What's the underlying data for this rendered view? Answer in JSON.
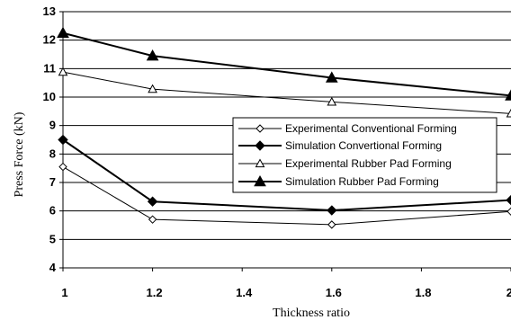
{
  "chart_data": {
    "type": "line",
    "xlabel": "Thickness ratio",
    "ylabel": "Press Force (kN)",
    "xlim": [
      1,
      2
    ],
    "ylim": [
      4,
      13
    ],
    "x_ticks": [
      "1",
      "1.2",
      "1.4",
      "1.6",
      "1.8",
      "2"
    ],
    "y_ticks": [
      "4",
      "5",
      "6",
      "7",
      "8",
      "9",
      "10",
      "11",
      "12",
      "13"
    ],
    "grid": "horizontal",
    "legend_position": "center-right",
    "x": [
      1,
      1.2,
      1.6,
      2
    ],
    "series": [
      {
        "name": "Experimental Conventional Forming",
        "marker": "open-diamond",
        "values": [
          7.55,
          5.7,
          5.52,
          5.98
        ]
      },
      {
        "name": "Simulation Convertional Forming",
        "marker": "filled-diamond",
        "values": [
          8.5,
          6.33,
          6.02,
          6.38
        ]
      },
      {
        "name": "Experimental Rubber Pad Forming",
        "marker": "open-triangle",
        "values": [
          10.88,
          10.28,
          9.83,
          9.42
        ]
      },
      {
        "name": "Simulation Rubber Pad Forming",
        "marker": "filled-triangle",
        "values": [
          12.25,
          11.45,
          10.68,
          10.05
        ]
      }
    ]
  }
}
